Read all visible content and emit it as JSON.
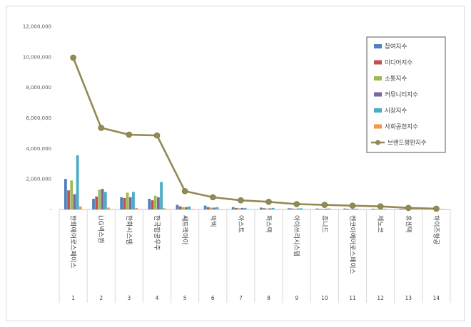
{
  "chart_data": {
    "type": "bar",
    "categories": [
      "한화에어로스페이스",
      "LIG넥스원",
      "한화시스템",
      "한국항공우주",
      "쎄트렉아이",
      "빅텍",
      "아스트",
      "퍼스텍",
      "아이쓰리시스템",
      "휴니드",
      "켄코아에어로스페이스",
      "제노코",
      "휴센텍",
      "하이즈항공"
    ],
    "index_labels": [
      "1",
      "2",
      "3",
      "4",
      "5",
      "6",
      "7",
      "8",
      "9",
      "10",
      "11",
      "12",
      "13",
      "14"
    ],
    "series": [
      {
        "name": "참여지수",
        "color": "#4f81bd",
        "values": [
          2000000,
          700000,
          800000,
          700000,
          300000,
          250000,
          150000,
          120000,
          80000,
          60000,
          60000,
          50000,
          40000,
          40000
        ]
      },
      {
        "name": "미디어지수",
        "color": "#c0504d",
        "values": [
          1250000,
          850000,
          750000,
          600000,
          200000,
          150000,
          100000,
          80000,
          60000,
          40000,
          40000,
          30000,
          30000,
          30000
        ]
      },
      {
        "name": "소통지수",
        "color": "#9bbb59",
        "values": [
          1900000,
          1300000,
          1100000,
          900000,
          150000,
          120000,
          80000,
          60000,
          50000,
          40000,
          30000,
          30000,
          20000,
          20000
        ]
      },
      {
        "name": "커뮤니티지수",
        "color": "#8064a2",
        "values": [
          1000000,
          1350000,
          800000,
          800000,
          150000,
          120000,
          100000,
          70000,
          60000,
          50000,
          40000,
          30000,
          30000,
          20000
        ]
      },
      {
        "name": "시장지수",
        "color": "#4bacc6",
        "values": [
          3550000,
          1150000,
          1150000,
          1800000,
          200000,
          150000,
          100000,
          100000,
          80000,
          60000,
          50000,
          40000,
          30000,
          30000
        ]
      },
      {
        "name": "사회공헌지수",
        "color": "#f79646",
        "values": [
          200000,
          120000,
          100000,
          80000,
          30000,
          20000,
          20000,
          10000,
          10000,
          10000,
          10000,
          10000,
          10000,
          10000
        ]
      }
    ],
    "line_series": {
      "name": "브랜드평판지수",
      "color": "#938953",
      "values": [
        9950000,
        5350000,
        4900000,
        4850000,
        1200000,
        800000,
        600000,
        500000,
        350000,
        300000,
        250000,
        200000,
        100000,
        50000
      ]
    },
    "yticks": [
      "-",
      "2,000,000",
      "4,000,000",
      "6,000,000",
      "8,000,000",
      "10,000,000",
      "12,000,000"
    ],
    "ylim": [
      0,
      12000000
    ],
    "legend_position": "top-right",
    "grid": false
  }
}
